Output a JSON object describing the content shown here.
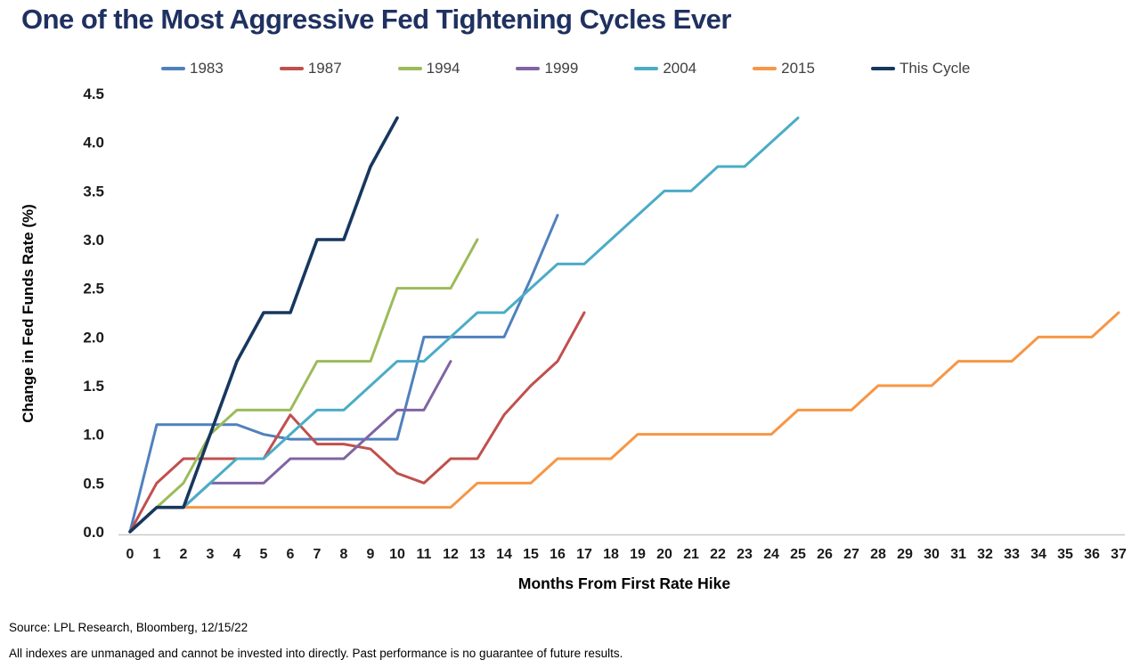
{
  "title": "One of the Most Aggressive Fed Tightening Cycles Ever",
  "footer": {
    "source": "Source: LPL Research, Bloomberg, 12/15/22",
    "disclaimer": "All indexes are unmanaged and cannot be invested into directly. Past performance is no guarantee of future results."
  },
  "colors": {
    "title_text": "#1F3160",
    "axis_line": "#C9C9C9",
    "tick_text": "#1A1A1A",
    "legend_text": "#404040"
  },
  "chart_data": {
    "type": "line",
    "title": "One of the Most Aggressive Fed Tightening Cycles Ever",
    "xlabel": "Months From First Rate Hike",
    "ylabel": "Change in Fed Funds Rate (%)",
    "xlim": [
      0,
      37
    ],
    "ylim": [
      0,
      4.5
    ],
    "x_ticks": [
      0,
      1,
      2,
      3,
      4,
      5,
      6,
      7,
      8,
      9,
      10,
      11,
      12,
      13,
      14,
      15,
      16,
      17,
      18,
      19,
      20,
      21,
      22,
      23,
      24,
      25,
      26,
      27,
      28,
      29,
      30,
      31,
      32,
      33,
      34,
      35,
      36,
      37
    ],
    "y_ticks": [
      0.0,
      0.5,
      1.0,
      1.5,
      2.0,
      2.5,
      3.0,
      3.5,
      4.0,
      4.5
    ],
    "grid": false,
    "legend_position": "top",
    "series": [
      {
        "name": "1983",
        "color": "#4F81BD",
        "values": [
          0,
          1.1,
          1.1,
          1.1,
          1.1,
          1.0,
          0.95,
          0.95,
          0.95,
          0.95,
          0.95,
          2.0,
          2.0,
          2.0,
          2.0,
          2.6,
          3.25
        ]
      },
      {
        "name": "1987",
        "color": "#C0504D",
        "values": [
          0,
          0.5,
          0.75,
          0.75,
          0.75,
          0.75,
          1.2,
          0.9,
          0.9,
          0.85,
          0.6,
          0.5,
          0.75,
          0.75,
          1.2,
          1.5,
          1.75,
          2.25
        ]
      },
      {
        "name": "1994",
        "color": "#9BBB59",
        "values": [
          0,
          0.25,
          0.5,
          1.0,
          1.25,
          1.25,
          1.25,
          1.75,
          1.75,
          1.75,
          2.5,
          2.5,
          2.5,
          3.0
        ]
      },
      {
        "name": "1999",
        "color": "#8064A2",
        "values": [
          0,
          0.25,
          0.25,
          0.5,
          0.5,
          0.5,
          0.75,
          0.75,
          0.75,
          1.0,
          1.25,
          1.25,
          1.75
        ]
      },
      {
        "name": "2004",
        "color": "#4BACC6",
        "values": [
          0,
          0.25,
          0.25,
          0.5,
          0.75,
          0.75,
          1.0,
          1.25,
          1.25,
          1.5,
          1.75,
          1.75,
          2.0,
          2.25,
          2.25,
          2.5,
          2.75,
          2.75,
          3.0,
          3.25,
          3.5,
          3.5,
          3.75,
          3.75,
          4.0,
          4.25
        ]
      },
      {
        "name": "2015",
        "color": "#F79646",
        "values": [
          0,
          0.25,
          0.25,
          0.25,
          0.25,
          0.25,
          0.25,
          0.25,
          0.25,
          0.25,
          0.25,
          0.25,
          0.25,
          0.5,
          0.5,
          0.5,
          0.75,
          0.75,
          0.75,
          1.0,
          1.0,
          1.0,
          1.0,
          1.0,
          1.0,
          1.25,
          1.25,
          1.25,
          1.5,
          1.5,
          1.5,
          1.75,
          1.75,
          1.75,
          2.0,
          2.0,
          2.0,
          2.25
        ]
      },
      {
        "name": "This Cycle",
        "color": "#17375E",
        "values": [
          0,
          0.25,
          0.25,
          1.0,
          1.75,
          2.25,
          2.25,
          3.0,
          3.0,
          3.75,
          4.25
        ]
      }
    ]
  }
}
